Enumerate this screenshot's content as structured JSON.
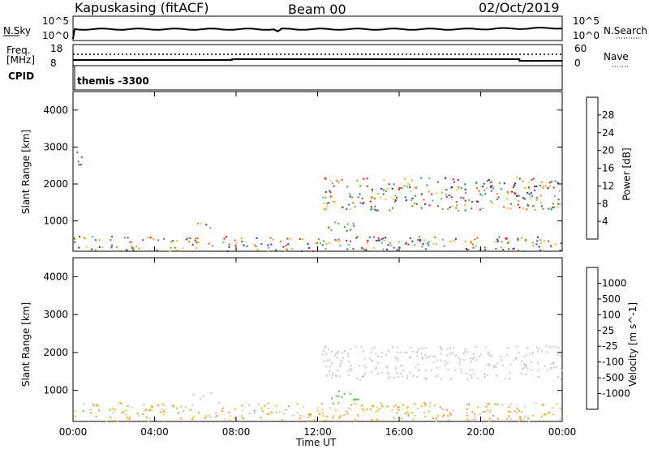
{
  "header": {
    "station": "Kapuskasing (fitACF)",
    "beam": "Beam 00",
    "date": "02/Oct/2019"
  },
  "noise_panel": {
    "left_label": "N.Sky",
    "left_top_tick": "10^5",
    "left_bottom_tick": "10^0",
    "right_top_tick": "10^5",
    "right_bottom_tick": "10^0",
    "right_label": "N.Search"
  },
  "freq_panel": {
    "left_label_top": "Freq.",
    "left_label_bottom": "[MHz]",
    "left_top_tick": "18",
    "left_bottom_tick": "8",
    "right_top_tick": "60",
    "right_bottom_tick": "0",
    "right_label": "Nave"
  },
  "cpid_panel": {
    "label": "CPID",
    "mode": "themis -3300"
  },
  "time_axis": {
    "ticks": [
      "00:00",
      "04:00",
      "08:00",
      "12:00",
      "16:00",
      "20:00",
      "00:00"
    ],
    "label": "Time UT"
  },
  "chart_data": [
    {
      "type": "heatmap",
      "name": "power",
      "ylabel": "Slant Range [km]",
      "y_ticks": [
        1000,
        2000,
        3000,
        4000
      ],
      "ylim": [
        180,
        4500
      ],
      "xlim_hours": [
        0,
        24
      ],
      "colorbar": {
        "label": "Power [dB]",
        "ticks": [
          "4",
          "8",
          "12",
          "16",
          "20",
          "24",
          "28"
        ],
        "colors": [
          "#1a2ad8",
          "#2a5fb0",
          "#3a7c52",
          "#58b84a",
          "#f2c018",
          "#f49a18",
          "#f0560e",
          "#e0140c"
        ]
      },
      "regions": [
        {
          "start_hr": 0.0,
          "end_hr": 24.0,
          "range_min": 200,
          "range_max": 600,
          "level": "mixed"
        },
        {
          "start_hr": 0.1,
          "end_hr": 0.4,
          "range_min": 2300,
          "range_max": 2900,
          "level": "low"
        },
        {
          "start_hr": 5.8,
          "end_hr": 6.8,
          "range_min": 800,
          "range_max": 1000,
          "level": "mid"
        },
        {
          "start_hr": 12.2,
          "end_hr": 24.0,
          "range_min": 1300,
          "range_max": 2200,
          "level": "mid-high"
        },
        {
          "start_hr": 12.5,
          "end_hr": 14.0,
          "range_min": 700,
          "range_max": 1000,
          "level": "mid"
        }
      ]
    },
    {
      "type": "heatmap",
      "name": "velocity",
      "ylabel": "Slant Range [km]",
      "y_ticks": [
        1000,
        2000,
        3000,
        4000
      ],
      "ylim": [
        180,
        4500
      ],
      "xlim_hours": [
        0,
        24
      ],
      "colorbar": {
        "label": "Velocity [m s^-1]",
        "ticks": [
          "1000",
          "500",
          "100",
          "25",
          "-25",
          "-100",
          "-500",
          "-1000"
        ],
        "colors": [
          "#1a2ad8",
          "#2a5fb0",
          "#3a7c52",
          "#58c03a",
          "#c8c8c8",
          "#f2c018",
          "#f49a18",
          "#f0560e",
          "#e0140c"
        ]
      },
      "regions": [
        {
          "start_hr": 0.0,
          "end_hr": 24.0,
          "range_min": 200,
          "range_max": 700,
          "level": "slightly negative"
        },
        {
          "start_hr": 5.8,
          "end_hr": 6.8,
          "range_min": 800,
          "range_max": 1000,
          "level": "near zero"
        },
        {
          "start_hr": 12.2,
          "end_hr": 24.0,
          "range_min": 1300,
          "range_max": 2200,
          "level": "near zero"
        },
        {
          "start_hr": 12.5,
          "end_hr": 14.0,
          "range_min": 700,
          "range_max": 1000,
          "level": "positive"
        }
      ]
    }
  ]
}
